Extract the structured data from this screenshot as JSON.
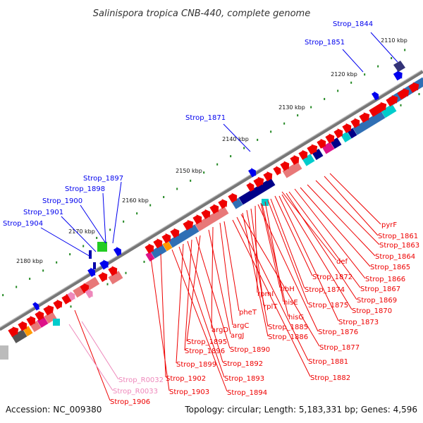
{
  "title": "Salinispora tropica CNB-440, complete genome",
  "footer": {
    "accession": "Accession: NC_009380",
    "summary": "Topology: circular; Length: 5,183,331 bp; Genes: 4,596"
  },
  "colors": {
    "forward_gene": "#0000ee",
    "reverse_gene": "#ee0000",
    "rna_gene": "#ee88bb",
    "backbone": "#777777",
    "tick_dot": "#228822",
    "protein_blue": "#2f6fb5",
    "protein_salmon": "#e87878",
    "protein_teal": "#00cccc",
    "protein_navy": "#000088",
    "protein_magenta": "#dd1188",
    "protein_orange": "#ff9900"
  },
  "ticks": [
    {
      "label": "2110 kbp",
      "kbp": 2110
    },
    {
      "label": "2120 kbp",
      "kbp": 2120
    },
    {
      "label": "2130 kbp",
      "kbp": 2130
    },
    {
      "label": "2140 kbp",
      "kbp": 2140
    },
    {
      "label": "2150 kbp",
      "kbp": 2150
    },
    {
      "label": "2160 kbp",
      "kbp": 2160
    },
    {
      "label": "2170 kbp",
      "kbp": 2170
    },
    {
      "label": "2180 kbp",
      "kbp": 2180
    }
  ],
  "forward_labels": [
    "Strop_1844",
    "Strop_1851",
    "Strop_1871",
    "Strop_1897",
    "Strop_1898",
    "Strop_1900",
    "Strop_1901",
    "Strop_1904"
  ],
  "reverse_labels": [
    "pyrF",
    "Strop_1861",
    "Strop_1863",
    "Strop_1864",
    "Strop_1865",
    "def",
    "Strop_1866",
    "Strop_1867",
    "Strop_1872",
    "Strop_1869",
    "Strop_1870",
    "Strop_1874",
    "ribH",
    "rpmI",
    "hisE",
    "Strop_1875",
    "rplT",
    "hisG",
    "Strop_1873",
    "Strop_1876",
    "pheT",
    "Strop_1885",
    "argC",
    "argD",
    "argJ",
    "Strop_1886",
    "Strop_1877",
    "Strop_1895",
    "Strop_1890",
    "Strop_1896",
    "Strop_1881",
    "Strop_1899",
    "Strop_1892",
    "Strop_1882",
    "Strop_1902",
    "Strop_1893",
    "Strop_1903",
    "Strop_1894",
    "Strop_1906"
  ],
  "rna_labels": [
    "Strop_R0032",
    "Strop_R0033"
  ]
}
